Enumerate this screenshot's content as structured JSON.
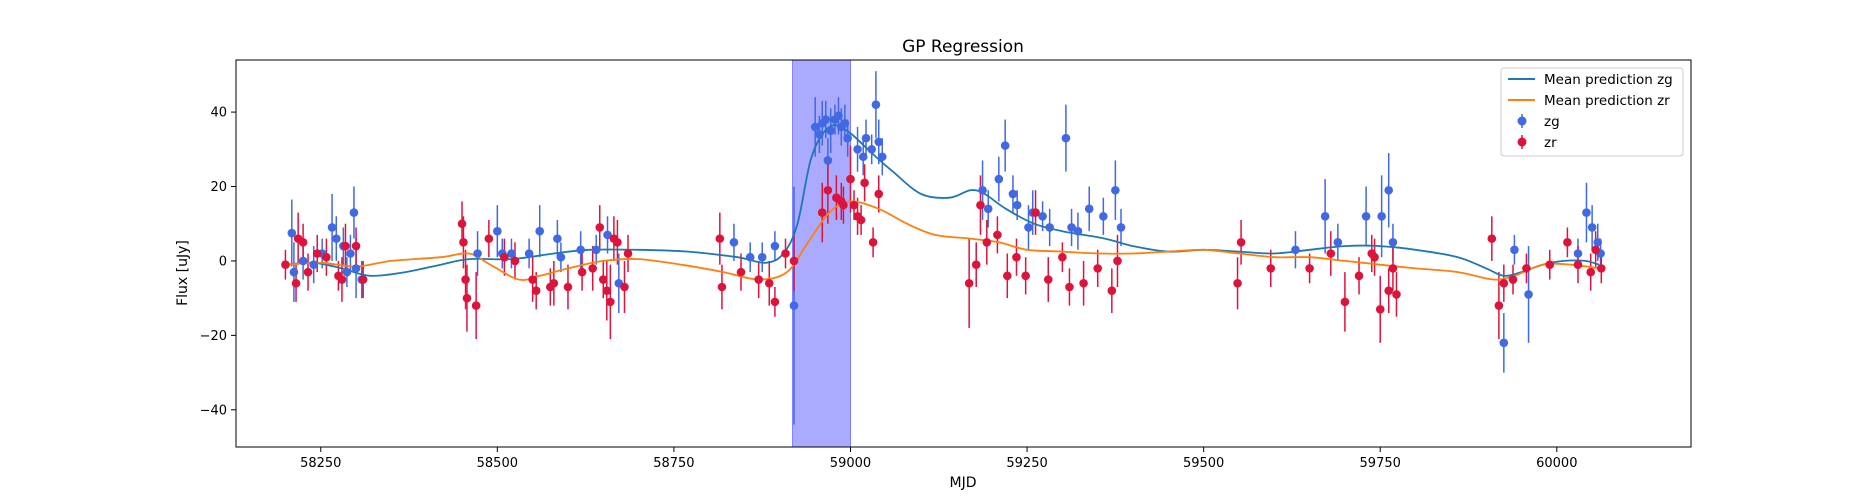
{
  "chart_data": {
    "type": "scatter",
    "title": "GP Regression",
    "xlabel": "MJD",
    "ylabel": "Flux [uJy]",
    "xlim": [
      58130,
      60190
    ],
    "ylim": [
      -50,
      54
    ],
    "xticks": [
      58250,
      58500,
      58750,
      59000,
      59250,
      59500,
      59750,
      60000
    ],
    "yticks": [
      -40,
      -20,
      0,
      20,
      40
    ],
    "shaded_region": {
      "x": [
        58918,
        59000
      ],
      "color": "#aaaaff"
    },
    "legend_position": "top-right",
    "colors": {
      "mean_zg": "#1f77b4",
      "mean_zr": "#ff7f0e",
      "zg": "#4169e1",
      "zr": "#dc143c"
    },
    "mean_prediction": [
      {
        "name": "Mean prediction zg",
        "color": "#1f77b4",
        "points": [
          [
            58200,
            -1
          ],
          [
            58240,
            -0.5
          ],
          [
            58280,
            -2
          ],
          [
            58320,
            -4
          ],
          [
            58370,
            -3
          ],
          [
            58420,
            -1
          ],
          [
            58460,
            0.5
          ],
          [
            58520,
            0.5
          ],
          [
            58580,
            2
          ],
          [
            58630,
            3
          ],
          [
            58700,
            3
          ],
          [
            58770,
            2.5
          ],
          [
            58840,
            1
          ],
          [
            58880,
            -0.5
          ],
          [
            58905,
            2
          ],
          [
            58925,
            10
          ],
          [
            58945,
            28
          ],
          [
            58970,
            36
          ],
          [
            58995,
            35
          ],
          [
            59030,
            29
          ],
          [
            59060,
            24
          ],
          [
            59100,
            18
          ],
          [
            59140,
            17
          ],
          [
            59170,
            19
          ],
          [
            59190,
            18
          ],
          [
            59220,
            14
          ],
          [
            59260,
            10
          ],
          [
            59300,
            8
          ],
          [
            59360,
            6
          ],
          [
            59400,
            4
          ],
          [
            59450,
            2.5
          ],
          [
            59500,
            3
          ],
          [
            59550,
            2.5
          ],
          [
            59600,
            2
          ],
          [
            59650,
            3
          ],
          [
            59700,
            4
          ],
          [
            59750,
            4
          ],
          [
            59800,
            3
          ],
          [
            59860,
            1
          ],
          [
            59900,
            -2
          ],
          [
            59925,
            -4
          ],
          [
            59950,
            -3
          ],
          [
            59980,
            -1
          ],
          [
            60010,
            0
          ],
          [
            60040,
            0
          ],
          [
            60060,
            -1
          ]
        ]
      },
      {
        "name": "Mean prediction zr",
        "color": "#ff7f0e",
        "points": [
          [
            58200,
            -1
          ],
          [
            58250,
            -0.5
          ],
          [
            58300,
            -1.5
          ],
          [
            58350,
            0
          ],
          [
            58420,
            1
          ],
          [
            58460,
            2
          ],
          [
            58490,
            -1
          ],
          [
            58530,
            -5
          ],
          [
            58560,
            -4
          ],
          [
            58600,
            -2
          ],
          [
            58650,
            0
          ],
          [
            58700,
            0.5
          ],
          [
            58760,
            -1
          ],
          [
            58820,
            -3
          ],
          [
            58870,
            -5
          ],
          [
            58910,
            -3
          ],
          [
            58940,
            5
          ],
          [
            58970,
            13
          ],
          [
            59000,
            16
          ],
          [
            59040,
            14
          ],
          [
            59080,
            10
          ],
          [
            59120,
            7
          ],
          [
            59170,
            6
          ],
          [
            59210,
            5
          ],
          [
            59250,
            3
          ],
          [
            59300,
            2.5
          ],
          [
            59350,
            2
          ],
          [
            59400,
            2
          ],
          [
            59450,
            2.5
          ],
          [
            59500,
            3
          ],
          [
            59550,
            2
          ],
          [
            59600,
            1
          ],
          [
            59650,
            1
          ],
          [
            59700,
            0
          ],
          [
            59750,
            -1
          ],
          [
            59800,
            -2
          ],
          [
            59860,
            -3
          ],
          [
            59910,
            -5
          ],
          [
            59940,
            -4
          ],
          [
            59980,
            -1
          ],
          [
            60020,
            -1
          ],
          [
            60060,
            -2
          ]
        ]
      }
    ],
    "series": [
      {
        "name": "zg",
        "color": "#4169e1",
        "points": [
          [
            58209,
            7.5,
            9
          ],
          [
            58212,
            -3,
            8
          ],
          [
            58225,
            0,
            5
          ],
          [
            58240,
            -1,
            5
          ],
          [
            58252,
            2,
            4
          ],
          [
            58266,
            9,
            9
          ],
          [
            58272,
            6,
            6
          ],
          [
            58282,
            4,
            5
          ],
          [
            58287,
            -3,
            4
          ],
          [
            58292,
            2,
            5
          ],
          [
            58297,
            13,
            7
          ],
          [
            58300,
            -2,
            8
          ],
          [
            58308,
            -5,
            5
          ],
          [
            58472,
            2,
            6
          ],
          [
            58500,
            8,
            7
          ],
          [
            58507,
            2,
            4
          ],
          [
            58520,
            2,
            4
          ],
          [
            58545,
            2,
            4
          ],
          [
            58560,
            8,
            7
          ],
          [
            58585,
            6,
            5
          ],
          [
            58590,
            1,
            4
          ],
          [
            58618,
            3,
            5
          ],
          [
            58640,
            3,
            4
          ],
          [
            58656,
            7,
            5
          ],
          [
            58672,
            -6,
            8
          ],
          [
            58835,
            5,
            5
          ],
          [
            58858,
            1,
            4
          ],
          [
            58875,
            1,
            4
          ],
          [
            58893,
            4,
            4
          ],
          [
            58920,
            -12,
            32
          ],
          [
            58950,
            36,
            8
          ],
          [
            58956,
            34,
            5
          ],
          [
            58960,
            37,
            6
          ],
          [
            58965,
            38,
            5
          ],
          [
            58968,
            27,
            6
          ],
          [
            58972,
            35,
            6
          ],
          [
            58978,
            38,
            4
          ],
          [
            58983,
            39,
            5
          ],
          [
            58987,
            36,
            5
          ],
          [
            58992,
            37,
            5
          ],
          [
            58996,
            33,
            5
          ],
          [
            59010,
            30,
            6
          ],
          [
            59018,
            28,
            5
          ],
          [
            59022,
            33,
            5
          ],
          [
            59030,
            30,
            4
          ],
          [
            59036,
            42,
            9
          ],
          [
            59040,
            32,
            6
          ],
          [
            59045,
            28,
            5
          ],
          [
            59187,
            19,
            8
          ],
          [
            59195,
            14,
            5
          ],
          [
            59210,
            22,
            6
          ],
          [
            59219,
            31,
            7
          ],
          [
            59230,
            18,
            5
          ],
          [
            59236,
            15,
            4
          ],
          [
            59252,
            9,
            6
          ],
          [
            59258,
            13,
            6
          ],
          [
            59272,
            12,
            4
          ],
          [
            59282,
            9,
            5
          ],
          [
            59305,
            33,
            9
          ],
          [
            59313,
            9,
            5
          ],
          [
            59322,
            8,
            5
          ],
          [
            59338,
            14,
            6
          ],
          [
            59358,
            12,
            5
          ],
          [
            59375,
            19,
            8
          ],
          [
            59383,
            9,
            5
          ],
          [
            59630,
            3,
            5
          ],
          [
            59672,
            12,
            10
          ],
          [
            59690,
            5,
            5
          ],
          [
            59730,
            12,
            8
          ],
          [
            59752,
            12,
            11
          ],
          [
            59762,
            19,
            10
          ],
          [
            59768,
            5,
            5
          ],
          [
            59925,
            -22,
            8
          ],
          [
            59940,
            3,
            4
          ],
          [
            59960,
            -9,
            13
          ],
          [
            60030,
            2,
            4
          ],
          [
            60042,
            13,
            8
          ],
          [
            60050,
            9,
            6
          ],
          [
            60058,
            5,
            5
          ],
          [
            60062,
            2,
            4
          ]
        ]
      },
      {
        "name": "zr",
        "color": "#dc143c",
        "points": [
          [
            58200,
            -1,
            4
          ],
          [
            58215,
            -6,
            5
          ],
          [
            58218,
            6,
            7
          ],
          [
            58225,
            5,
            5
          ],
          [
            58232,
            -3,
            5
          ],
          [
            58245,
            2,
            5
          ],
          [
            58258,
            1,
            5
          ],
          [
            58275,
            -4,
            4
          ],
          [
            58280,
            -5,
            6
          ],
          [
            58285,
            4,
            6
          ],
          [
            58300,
            4,
            5
          ],
          [
            58310,
            -5,
            5
          ],
          [
            58450,
            10,
            6
          ],
          [
            58452,
            5,
            7
          ],
          [
            58455,
            -5,
            8
          ],
          [
            58457,
            -10,
            9
          ],
          [
            58470,
            -12,
            9
          ],
          [
            58488,
            6,
            5
          ],
          [
            58510,
            1,
            5
          ],
          [
            58525,
            0,
            5
          ],
          [
            58550,
            -5,
            6
          ],
          [
            58555,
            -8,
            5
          ],
          [
            58575,
            -7,
            5
          ],
          [
            58580,
            -6,
            6
          ],
          [
            58600,
            -7,
            6
          ],
          [
            58620,
            -3,
            5
          ],
          [
            58635,
            -2,
            6
          ],
          [
            58645,
            9,
            6
          ],
          [
            58650,
            -5,
            5
          ],
          [
            58655,
            -8,
            8
          ],
          [
            58660,
            -11,
            10
          ],
          [
            58665,
            6,
            6
          ],
          [
            58670,
            5,
            6
          ],
          [
            58680,
            -7,
            7
          ],
          [
            58685,
            2,
            5
          ],
          [
            58815,
            6,
            7
          ],
          [
            58818,
            -7,
            6
          ],
          [
            58845,
            -3,
            5
          ],
          [
            58870,
            -5,
            5
          ],
          [
            58885,
            -6,
            6
          ],
          [
            58893,
            -11,
            4
          ],
          [
            58908,
            2,
            4
          ],
          [
            58920,
            0,
            8
          ],
          [
            58960,
            13,
            8
          ],
          [
            58968,
            19,
            9
          ],
          [
            58980,
            17,
            6
          ],
          [
            58987,
            16,
            5
          ],
          [
            58990,
            15,
            5
          ],
          [
            59000,
            22,
            9
          ],
          [
            59005,
            15,
            4
          ],
          [
            59010,
            12,
            5
          ],
          [
            59015,
            11,
            4
          ],
          [
            59020,
            21,
            5
          ],
          [
            59032,
            5,
            4
          ],
          [
            59040,
            18,
            5
          ],
          [
            59168,
            -6,
            12
          ],
          [
            59178,
            -1,
            6
          ],
          [
            59184,
            15,
            8
          ],
          [
            59193,
            5,
            6
          ],
          [
            59208,
            7,
            5
          ],
          [
            59222,
            -4,
            6
          ],
          [
            59235,
            1,
            5
          ],
          [
            59248,
            -4,
            5
          ],
          [
            59262,
            13,
            6
          ],
          [
            59280,
            -5,
            6
          ],
          [
            59300,
            1,
            4
          ],
          [
            59310,
            -7,
            5
          ],
          [
            59330,
            -6,
            6
          ],
          [
            59350,
            -2,
            5
          ],
          [
            59370,
            -8,
            6
          ],
          [
            59378,
            0,
            7
          ],
          [
            59548,
            -6,
            7
          ],
          [
            59553,
            5,
            6
          ],
          [
            59595,
            -2,
            5
          ],
          [
            59650,
            -2,
            4
          ],
          [
            59680,
            2,
            6
          ],
          [
            59700,
            -11,
            8
          ],
          [
            59720,
            -4,
            5
          ],
          [
            59738,
            2,
            5
          ],
          [
            59742,
            1,
            5
          ],
          [
            59750,
            -13,
            9
          ],
          [
            59762,
            -8,
            6
          ],
          [
            59768,
            -2,
            6
          ],
          [
            59773,
            -9,
            6
          ],
          [
            59908,
            6,
            6
          ],
          [
            59918,
            -12,
            9
          ],
          [
            59925,
            -6,
            5
          ],
          [
            59938,
            -5,
            4
          ],
          [
            59957,
            -2,
            4
          ],
          [
            59990,
            -1,
            4
          ],
          [
            60015,
            5,
            4
          ],
          [
            60030,
            -1,
            5
          ],
          [
            60048,
            -3,
            5
          ],
          [
            60055,
            3,
            5
          ],
          [
            60063,
            -2,
            4
          ]
        ]
      }
    ]
  }
}
